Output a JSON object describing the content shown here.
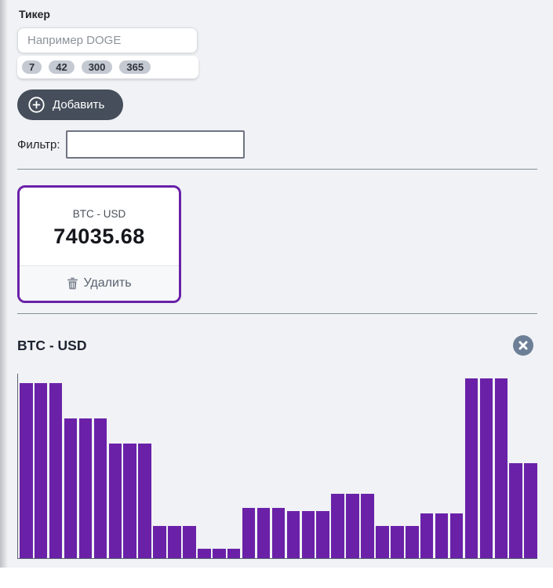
{
  "ticker_form": {
    "label": "Тикер",
    "input_value": "",
    "input_placeholder": "Например DOGE",
    "period_pills": [
      "7",
      "42",
      "300",
      "365"
    ]
  },
  "add_button": {
    "label": "Добавить",
    "icon": "plus-circle-icon"
  },
  "filter": {
    "label": "Фильтр:",
    "value": ""
  },
  "price_card": {
    "pair": "BTC - USD",
    "price": "74035.68",
    "delete_label": "Удалить",
    "delete_icon": "trash-icon"
  },
  "chart_section": {
    "title": "BTC - USD",
    "close_icon": "close-icon"
  },
  "chart_data": {
    "type": "bar",
    "title": "BTC - USD",
    "num_bars": 35,
    "values_unit": "percent_of_plot_height",
    "values": [
      94.9,
      94.9,
      94.9,
      75.6,
      75.6,
      75.6,
      62.3,
      62.3,
      62.3,
      17.4,
      17.4,
      17.4,
      5.1,
      5.1,
      5.1,
      27.1,
      27.1,
      27.1,
      25.4,
      25.4,
      25.4,
      34.7,
      34.7,
      34.7,
      17.4,
      17.4,
      17.4,
      24.2,
      24.2,
      24.2,
      97.5,
      97.5,
      97.5,
      51.7,
      51.7
    ],
    "xlabel": "",
    "ylabel": "",
    "grid": false,
    "legend": false,
    "axis_color": "#5a6372",
    "bar_color": "#6a21a8"
  },
  "colors": {
    "page_background": "#f0f2f5",
    "accent_purple": "#6a21a8",
    "add_button_background": "#454e5a",
    "close_button_background": "#6d7f96",
    "pill_background": "#c4c9d2"
  }
}
